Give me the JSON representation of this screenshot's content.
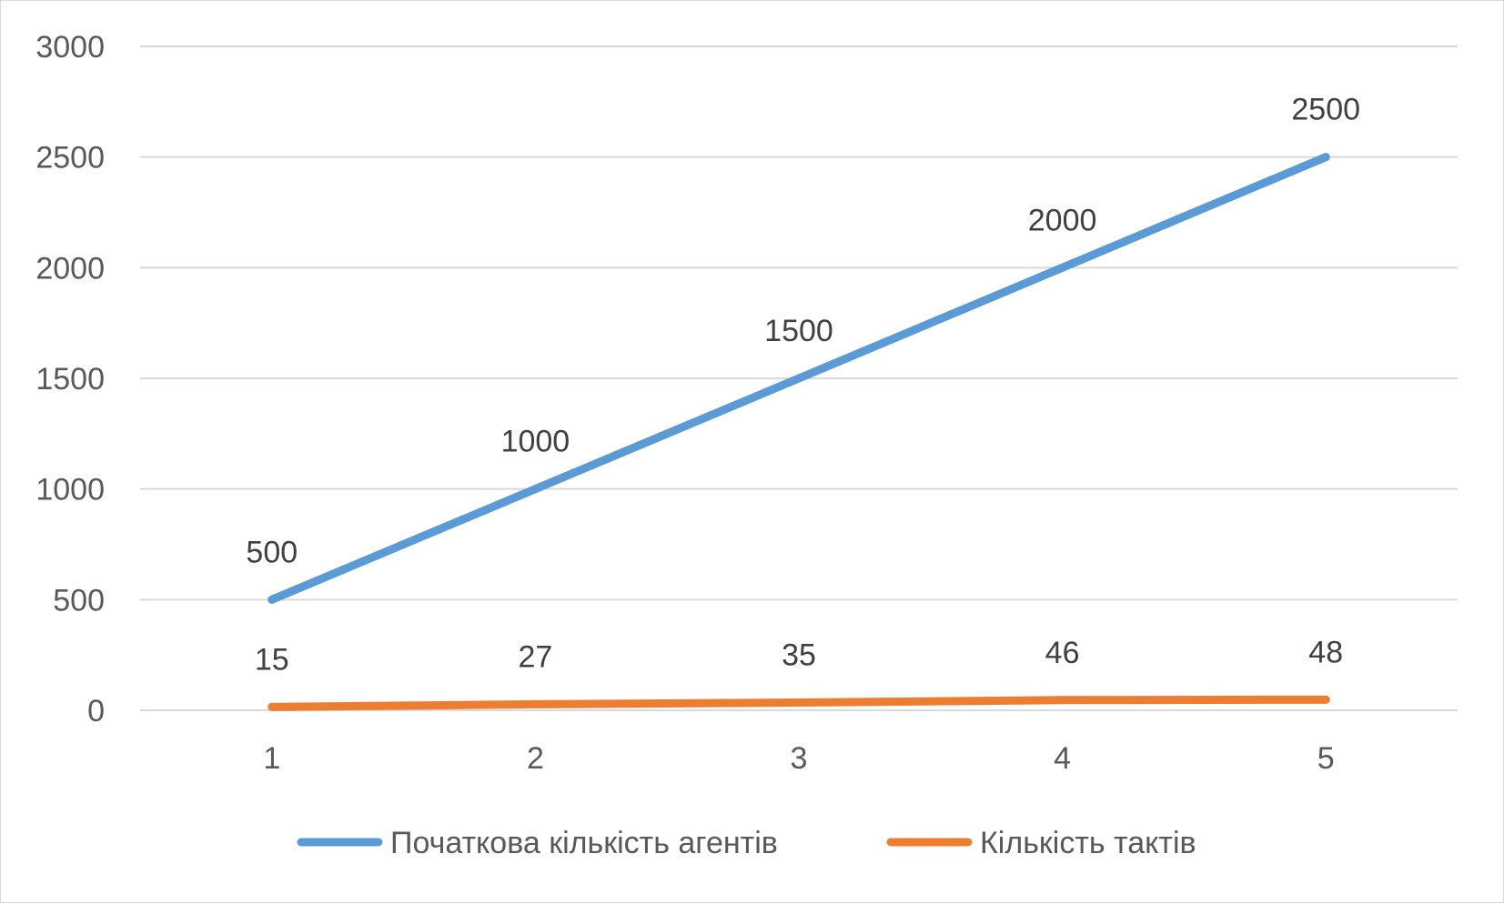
{
  "chart_data": {
    "type": "line",
    "title": "",
    "xlabel": "",
    "ylabel": "",
    "categories": [
      "1",
      "2",
      "3",
      "4",
      "5"
    ],
    "ylim": [
      0,
      3000
    ],
    "yticks": [
      0,
      500,
      1000,
      1500,
      2000,
      2500,
      3000
    ],
    "grid": "horizontal",
    "legend_position": "bottom",
    "data_labels": true,
    "series": [
      {
        "name": "Початкова кількість агентів",
        "color": "#5b9bd5",
        "values": [
          500,
          1000,
          1500,
          2000,
          2500
        ]
      },
      {
        "name": "Кількість тактів",
        "color": "#ed7d31",
        "values": [
          15,
          27,
          35,
          46,
          48
        ]
      }
    ]
  }
}
